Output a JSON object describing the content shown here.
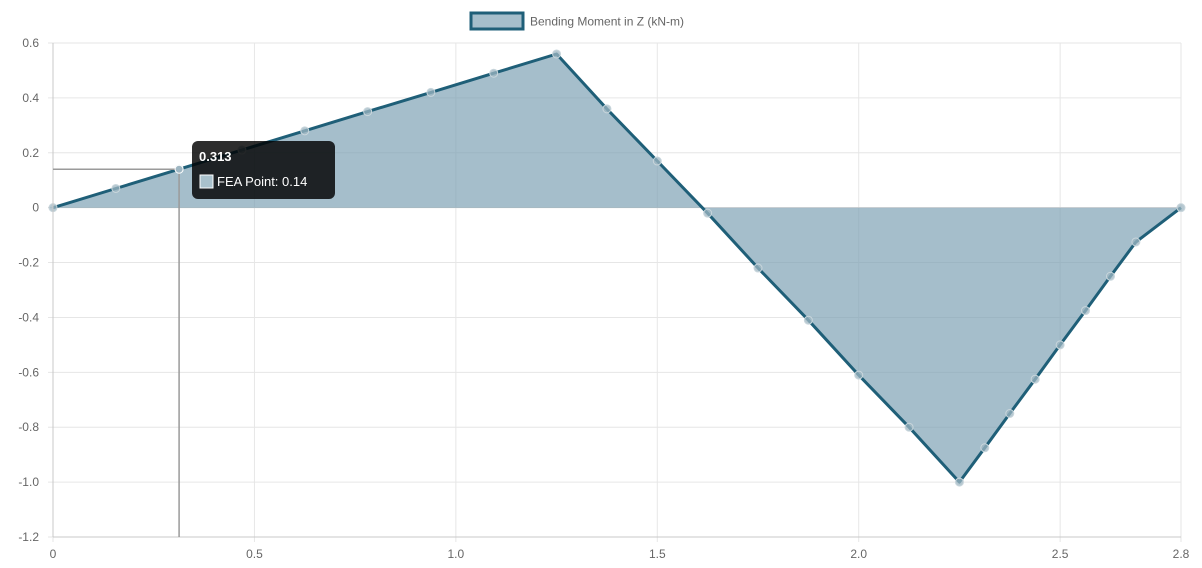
{
  "chart_data": {
    "type": "area",
    "legend": {
      "label": "Bending Moment in Z (kN-m)",
      "placement": "top-center"
    },
    "colors": {
      "line": "#1f5f78",
      "fill": "#7b9fb2",
      "grid": "#e6e6e6",
      "axis": "#666666",
      "tooltip_bg": "#000000"
    },
    "xlim": [
      0,
      2.8
    ],
    "ylim": [
      -1.2,
      0.6
    ],
    "x_ticks": [
      {
        "value": 0,
        "label": "0"
      },
      {
        "value": 0.5,
        "label": "0.5"
      },
      {
        "value": 1.0,
        "label": "1.0"
      },
      {
        "value": 1.5,
        "label": "1.5"
      },
      {
        "value": 2.0,
        "label": "2.0"
      },
      {
        "value": 2.5,
        "label": "2.5"
      },
      {
        "value": 2.8,
        "label": "2.8"
      }
    ],
    "y_ticks": [
      {
        "value": 0.6,
        "label": "0.6"
      },
      {
        "value": 0.4,
        "label": "0.4"
      },
      {
        "value": 0.2,
        "label": "0.2"
      },
      {
        "value": 0,
        "label": "0"
      },
      {
        "value": -0.2,
        "label": "-0.2"
      },
      {
        "value": -0.4,
        "label": "-0.4"
      },
      {
        "value": -0.6,
        "label": "-0.6"
      },
      {
        "value": -0.8,
        "label": "-0.8"
      },
      {
        "value": -1.0,
        "label": "-1.0"
      },
      {
        "value": -1.2,
        "label": "-1.2"
      }
    ],
    "grid": true,
    "series": [
      {
        "name": "Bending Moment in Z (kN-m)",
        "x": [
          0,
          0.156,
          0.313,
          0.469,
          0.625,
          0.781,
          0.938,
          1.094,
          1.25,
          1.375,
          1.5,
          1.625,
          1.75,
          1.875,
          2.0,
          2.125,
          2.25,
          2.313,
          2.375,
          2.438,
          2.5,
          2.563,
          2.625,
          2.688,
          2.8
        ],
        "y": [
          0,
          0.07,
          0.14,
          0.21,
          0.28,
          0.35,
          0.42,
          0.49,
          0.56,
          0.36,
          0.17,
          -0.02,
          -0.22,
          -0.41,
          -0.61,
          -0.8,
          -1.0,
          -0.875,
          -0.75,
          -0.625,
          -0.5,
          -0.375,
          -0.25,
          -0.125,
          0
        ]
      }
    ],
    "tooltip": {
      "title": "0.313",
      "label": "FEA Point: 0.14",
      "x": 0.313,
      "y": 0.14
    }
  }
}
